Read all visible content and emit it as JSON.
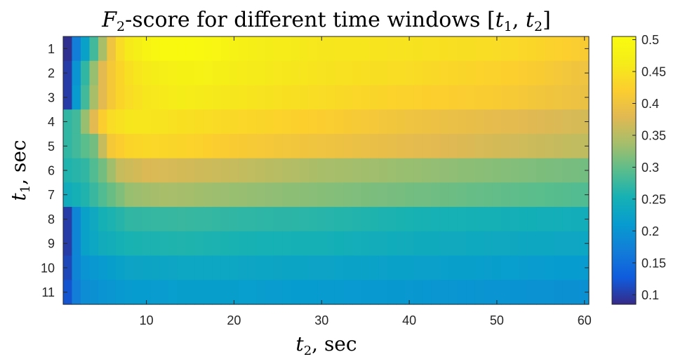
{
  "chart_data": {
    "type": "heatmap",
    "title": "F2-score for different time windows [t1, t2]",
    "title_parts": {
      "main": "F",
      "sub": "2",
      "rest": "-score for different time windows ",
      "bracket_open": "[",
      "t1_main": "t",
      "t1_sub": "1",
      "comma": ", ",
      "t2_main": "t",
      "t2_sub": "2",
      "bracket_close": "]"
    },
    "xlabel": "t2, sec",
    "xlabel_parts": {
      "main": "t",
      "sub": "2",
      "rest": ", sec"
    },
    "ylabel": "t1, sec",
    "ylabel_parts": {
      "main": "t",
      "sub": "1",
      "rest": ", sec"
    },
    "x_range": [
      1,
      60
    ],
    "x_ticks": [
      10,
      20,
      30,
      40,
      50,
      60
    ],
    "y_rows": [
      1,
      2,
      3,
      4,
      5,
      6,
      7,
      8,
      9,
      10,
      11
    ],
    "colorbar": {
      "range": [
        0.085,
        0.505
      ],
      "ticks": [
        0.5,
        0.45,
        0.4,
        0.35,
        0.3,
        0.25,
        0.2,
        0.15,
        0.1
      ],
      "colormap": "parula"
    },
    "rows": [
      {
        "t1": 1,
        "start_t2": 1,
        "anchors": [
          [
            1,
            0.09
          ],
          [
            2,
            0.17
          ],
          [
            3,
            0.22
          ],
          [
            4,
            0.28
          ],
          [
            5,
            0.34
          ],
          [
            6,
            0.4
          ],
          [
            7,
            0.44
          ],
          [
            8,
            0.46
          ],
          [
            9,
            0.47
          ],
          [
            10,
            0.485
          ],
          [
            12,
            0.5
          ],
          [
            15,
            0.5
          ],
          [
            18,
            0.49
          ],
          [
            22,
            0.47
          ],
          [
            30,
            0.455
          ],
          [
            40,
            0.45
          ],
          [
            50,
            0.44
          ],
          [
            55,
            0.43
          ],
          [
            60,
            0.415
          ]
        ]
      },
      {
        "t1": 2,
        "start_t2": 1,
        "anchors": [
          [
            1,
            0.1
          ],
          [
            2,
            0.2
          ],
          [
            3,
            0.27
          ],
          [
            4,
            0.33
          ],
          [
            5,
            0.38
          ],
          [
            6,
            0.41
          ],
          [
            7,
            0.43
          ],
          [
            8,
            0.445
          ],
          [
            10,
            0.46
          ],
          [
            13,
            0.475
          ],
          [
            16,
            0.48
          ],
          [
            20,
            0.465
          ],
          [
            30,
            0.45
          ],
          [
            40,
            0.44
          ],
          [
            50,
            0.425
          ],
          [
            55,
            0.415
          ],
          [
            60,
            0.4
          ]
        ]
      },
      {
        "t1": 3,
        "start_t2": 1,
        "anchors": [
          [
            1,
            0.1
          ],
          [
            2,
            0.21
          ],
          [
            3,
            0.28
          ],
          [
            4,
            0.34
          ],
          [
            5,
            0.38
          ],
          [
            6,
            0.41
          ],
          [
            7,
            0.43
          ],
          [
            8,
            0.44
          ],
          [
            10,
            0.455
          ],
          [
            14,
            0.465
          ],
          [
            20,
            0.455
          ],
          [
            30,
            0.44
          ],
          [
            40,
            0.425
          ],
          [
            50,
            0.415
          ],
          [
            60,
            0.395
          ]
        ]
      },
      {
        "t1": 4,
        "start_t2": 1,
        "anchors": [
          [
            1,
            0.27
          ],
          [
            2,
            0.28
          ],
          [
            3,
            0.33
          ],
          [
            4,
            0.38
          ],
          [
            5,
            0.42
          ],
          [
            6,
            0.44
          ],
          [
            8,
            0.455
          ],
          [
            12,
            0.45
          ],
          [
            20,
            0.435
          ],
          [
            30,
            0.42
          ],
          [
            40,
            0.4
          ],
          [
            50,
            0.385
          ],
          [
            60,
            0.37
          ]
        ]
      },
      {
        "t1": 5,
        "start_t2": 1,
        "anchors": [
          [
            1,
            0.27
          ],
          [
            2,
            0.28
          ],
          [
            4,
            0.31
          ],
          [
            5,
            0.36
          ],
          [
            6,
            0.41
          ],
          [
            8,
            0.43
          ],
          [
            10,
            0.435
          ],
          [
            14,
            0.43
          ],
          [
            20,
            0.415
          ],
          [
            30,
            0.4
          ],
          [
            40,
            0.385
          ],
          [
            50,
            0.37
          ],
          [
            60,
            0.355
          ]
        ]
      },
      {
        "t1": 6,
        "start_t2": 1,
        "anchors": [
          [
            1,
            0.26
          ],
          [
            3,
            0.27
          ],
          [
            5,
            0.31
          ],
          [
            7,
            0.36
          ],
          [
            10,
            0.375
          ],
          [
            14,
            0.37
          ],
          [
            20,
            0.36
          ],
          [
            30,
            0.34
          ],
          [
            40,
            0.33
          ],
          [
            50,
            0.32
          ],
          [
            60,
            0.31
          ]
        ]
      },
      {
        "t1": 7,
        "start_t2": 1,
        "anchors": [
          [
            1,
            0.24
          ],
          [
            3,
            0.26
          ],
          [
            5,
            0.29
          ],
          [
            8,
            0.33
          ],
          [
            12,
            0.34
          ],
          [
            20,
            0.33
          ],
          [
            30,
            0.32
          ],
          [
            40,
            0.31
          ],
          [
            50,
            0.3
          ],
          [
            60,
            0.29
          ]
        ]
      },
      {
        "t1": 8,
        "start_t2": 1,
        "anchors": [
          [
            1,
            0.1
          ],
          [
            2,
            0.18
          ],
          [
            3,
            0.22
          ],
          [
            5,
            0.25
          ],
          [
            8,
            0.27
          ],
          [
            14,
            0.275
          ],
          [
            20,
            0.27
          ],
          [
            30,
            0.265
          ],
          [
            40,
            0.255
          ],
          [
            50,
            0.25
          ],
          [
            60,
            0.245
          ]
        ]
      },
      {
        "t1": 9,
        "start_t2": 1,
        "anchors": [
          [
            1,
            0.1
          ],
          [
            2,
            0.18
          ],
          [
            3,
            0.22
          ],
          [
            5,
            0.24
          ],
          [
            8,
            0.255
          ],
          [
            14,
            0.26
          ],
          [
            20,
            0.255
          ],
          [
            30,
            0.25
          ],
          [
            40,
            0.24
          ],
          [
            50,
            0.235
          ],
          [
            60,
            0.23
          ]
        ]
      },
      {
        "t1": 10,
        "start_t2": 1,
        "anchors": [
          [
            1,
            0.11
          ],
          [
            2,
            0.18
          ],
          [
            3,
            0.2
          ],
          [
            5,
            0.21
          ],
          [
            8,
            0.225
          ],
          [
            14,
            0.23
          ],
          [
            20,
            0.23
          ],
          [
            30,
            0.225
          ],
          [
            40,
            0.22
          ],
          [
            50,
            0.215
          ],
          [
            60,
            0.21
          ]
        ]
      },
      {
        "t1": 11,
        "start_t2": 1,
        "anchors": [
          [
            1,
            0.12
          ],
          [
            2,
            0.17
          ],
          [
            3,
            0.19
          ],
          [
            5,
            0.2
          ],
          [
            8,
            0.21
          ],
          [
            14,
            0.215
          ],
          [
            20,
            0.215
          ],
          [
            30,
            0.21
          ],
          [
            40,
            0.205
          ],
          [
            50,
            0.2
          ],
          [
            60,
            0.195
          ]
        ]
      }
    ]
  }
}
